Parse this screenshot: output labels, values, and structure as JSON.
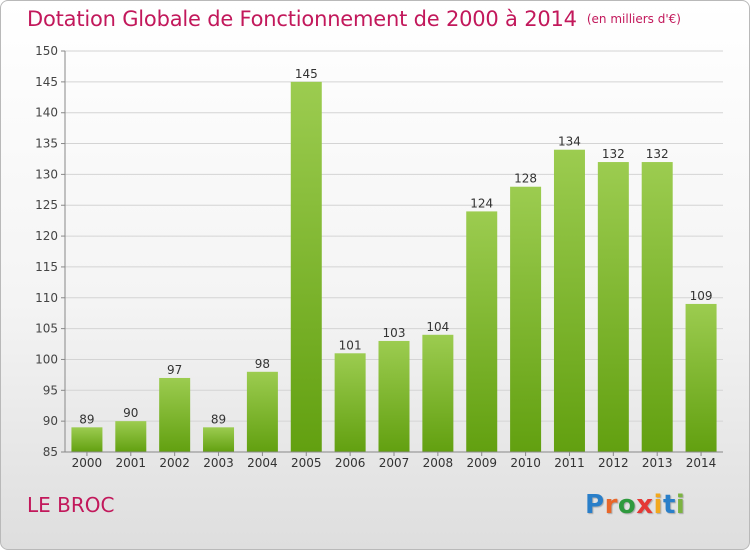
{
  "header": {
    "title": "Dotation Globale de Fonctionnement de 2000 à 2014",
    "unit": "(en milliers d'€)"
  },
  "footer": {
    "place": "LE BROC",
    "logo_text": "Proxiti"
  },
  "colors": {
    "bar_light": "#9ccc50",
    "bar_dark": "#62a010",
    "title": "#c2185b",
    "grid": "#d4d4d4"
  },
  "chart_data": {
    "type": "bar",
    "categories": [
      "2000",
      "2001",
      "2002",
      "2003",
      "2004",
      "2005",
      "2006",
      "2007",
      "2008",
      "2009",
      "2010",
      "2011",
      "2012",
      "2013",
      "2014"
    ],
    "values": [
      89,
      90,
      97,
      89,
      98,
      145,
      101,
      103,
      104,
      124,
      128,
      134,
      132,
      132,
      109
    ],
    "ylim": [
      85,
      150
    ],
    "yticks": [
      85,
      90,
      95,
      100,
      105,
      110,
      115,
      120,
      125,
      130,
      135,
      140,
      145,
      150
    ],
    "grid": true,
    "legend": "none"
  }
}
